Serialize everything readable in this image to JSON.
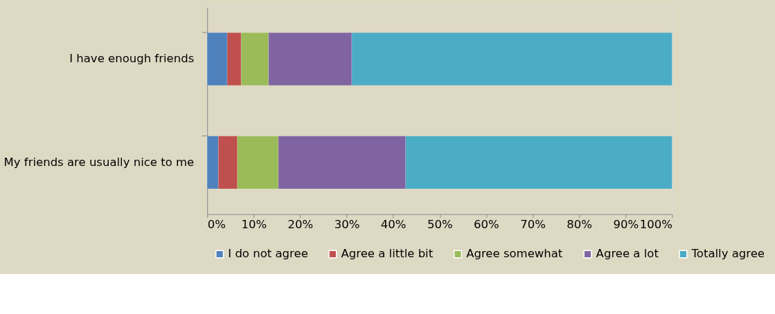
{
  "chart_data": {
    "type": "bar",
    "orientation": "horizontal",
    "stacked": true,
    "categories": [
      "I have enough friends",
      "My friends are usually nice to me"
    ],
    "series": [
      {
        "name": "I do not agree",
        "color": "#4f81bd",
        "values": [
          4.3,
          2.4
        ]
      },
      {
        "name": "Agree a little bit",
        "color": "#c0504d",
        "values": [
          3.0,
          4.1
        ]
      },
      {
        "name": "Agree somewhat",
        "color": "#9bbb59",
        "values": [
          5.9,
          8.8
        ]
      },
      {
        "name": "Agree a lot",
        "color": "#8064a2",
        "values": [
          17.9,
          27.4
        ]
      },
      {
        "name": "Totally agree",
        "color": "#4bacc6",
        "values": [
          68.9,
          57.3
        ]
      }
    ],
    "xlim": [
      0,
      100
    ],
    "xticks": [
      {
        "value": 0,
        "label": "0%"
      },
      {
        "value": 10,
        "label": "10%"
      },
      {
        "value": 20,
        "label": "20%"
      },
      {
        "value": 30,
        "label": "30%"
      },
      {
        "value": 40,
        "label": "40%"
      },
      {
        "value": 50,
        "label": "50%"
      },
      {
        "value": 60,
        "label": "60%"
      },
      {
        "value": 70,
        "label": "70%"
      },
      {
        "value": 80,
        "label": "80%"
      },
      {
        "value": 90,
        "label": "90%"
      },
      {
        "value": 100,
        "label": "100%"
      }
    ],
    "grid": false,
    "legend": "bottom"
  }
}
